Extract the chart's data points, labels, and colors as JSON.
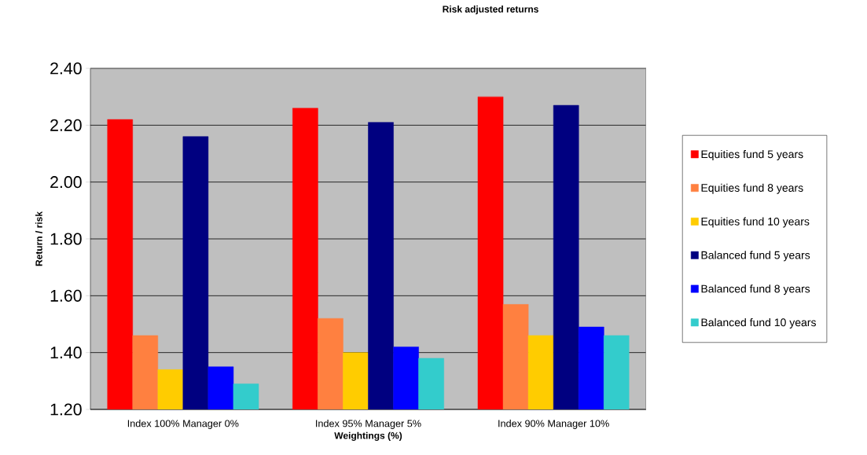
{
  "chart_data": {
    "type": "bar",
    "title": "Risk adjusted returns",
    "xlabel": "Weightings (%)",
    "ylabel": "Return / risk",
    "categories": [
      "Index 100% Manager 0%",
      "Index 95% Manager 5%",
      "Index 90% Manager 10%"
    ],
    "series": [
      {
        "name": "Equities fund 5 years",
        "color": "#ff0000",
        "values": [
          2.22,
          2.26,
          2.3
        ]
      },
      {
        "name": "Equities fund 8 years",
        "color": "#ff8040",
        "values": [
          1.46,
          1.52,
          1.57
        ]
      },
      {
        "name": "Equities fund 10 years",
        "color": "#ffcc00",
        "values": [
          1.34,
          1.4,
          1.46
        ]
      },
      {
        "name": "Balanced fund 5 years",
        "color": "#000080",
        "values": [
          2.16,
          2.21,
          2.27
        ]
      },
      {
        "name": "Balanced fund 8 years",
        "color": "#0000ff",
        "values": [
          1.35,
          1.42,
          1.49
        ]
      },
      {
        "name": "Balanced fund 10 years",
        "color": "#33cccc",
        "values": [
          1.29,
          1.38,
          1.46
        ]
      }
    ],
    "ylim": [
      1.2,
      2.4
    ],
    "yticks": [
      {
        "value": 1.2,
        "label": "1.20"
      },
      {
        "value": 1.4,
        "label": "1.40"
      },
      {
        "value": 1.6,
        "label": "1.60"
      },
      {
        "value": 1.8,
        "label": "1.80"
      },
      {
        "value": 2.0,
        "label": "2.00"
      },
      {
        "value": 2.2,
        "label": "2.20"
      },
      {
        "value": 2.4,
        "label": "2.40"
      }
    ],
    "grid": "y",
    "legend": "right"
  }
}
